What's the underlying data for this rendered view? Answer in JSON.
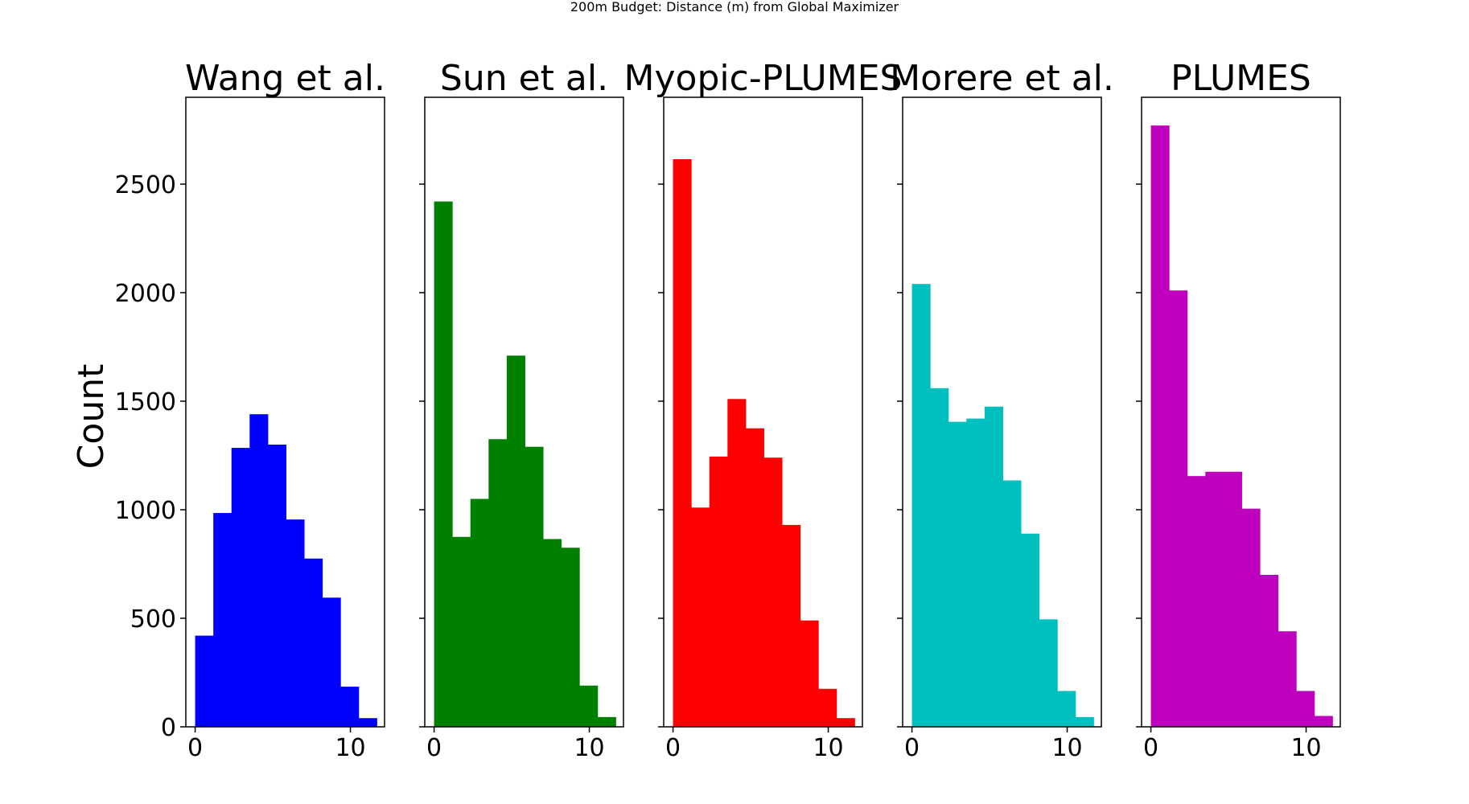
{
  "figure": {
    "suptitle": "200m Budget: Distance (m) from Global Maximizer"
  },
  "chart_data": {
    "type": "bar",
    "histogram": true,
    "title": "200m Budget: Distance (m) from Global Maximizer",
    "ylabel": "Count",
    "sharey": true,
    "ylim": [
      0,
      2900
    ],
    "yticks": [
      0,
      500,
      1000,
      1500,
      2000,
      2500
    ],
    "xlim": [
      -0.6,
      12.2
    ],
    "xticks": [
      0,
      10
    ],
    "bin_edges": [
      0.0,
      1.17,
      2.34,
      3.51,
      4.68,
      5.85,
      7.02,
      8.19,
      9.36,
      10.53,
      11.7
    ],
    "series": [
      {
        "name": "Wang et al.",
        "color": "#0000ff",
        "values": [
          420,
          985,
          1285,
          1440,
          1300,
          955,
          775,
          595,
          185,
          40
        ]
      },
      {
        "name": "Sun et al.",
        "color": "#008000",
        "values": [
          2420,
          875,
          1050,
          1325,
          1710,
          1290,
          865,
          825,
          190,
          45
        ]
      },
      {
        "name": "Myopic-PLUMES",
        "color": "#ff0000",
        "values": [
          2615,
          1010,
          1245,
          1510,
          1375,
          1240,
          930,
          490,
          175,
          40
        ]
      },
      {
        "name": "Morere et al.",
        "color": "#00bfbf",
        "values": [
          2040,
          1560,
          1405,
          1420,
          1475,
          1135,
          890,
          495,
          165,
          45
        ]
      },
      {
        "name": "PLUMES",
        "color": "#bf00bf",
        "values": [
          2770,
          2010,
          1155,
          1175,
          1175,
          1005,
          700,
          440,
          165,
          50
        ]
      }
    ]
  }
}
